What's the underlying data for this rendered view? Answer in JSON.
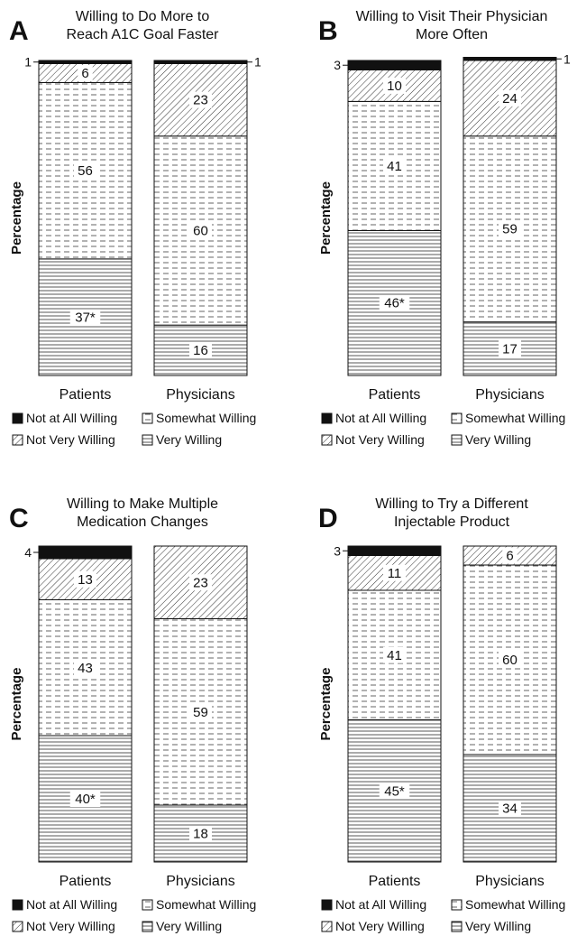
{
  "chart_data": [
    {
      "type": "bar",
      "stacked": true,
      "letter": "A",
      "title_lines": [
        "Willing to Do More to",
        "Reach A1C Goal Faster"
      ],
      "ylabel": "Percentage",
      "categories": [
        "Patients",
        "Physicians"
      ],
      "series": [
        {
          "name": "Very Willing",
          "values": [
            37,
            16
          ],
          "labels": [
            "37*",
            "16"
          ]
        },
        {
          "name": "Somewhat Willing",
          "values": [
            56,
            60
          ],
          "labels": [
            "56",
            "60"
          ]
        },
        {
          "name": "Not Very Willing",
          "values": [
            6,
            23
          ],
          "labels": [
            "6",
            "23"
          ]
        },
        {
          "name": "Not at All Willing",
          "values": [
            1,
            1
          ],
          "labels": [
            "1",
            "1"
          ]
        }
      ]
    },
    {
      "type": "bar",
      "stacked": true,
      "letter": "B",
      "title_lines": [
        "Willing to Visit Their Physician",
        "More Often"
      ],
      "ylabel": "Percentage",
      "categories": [
        "Patients",
        "Physicians"
      ],
      "series": [
        {
          "name": "Very Willing",
          "values": [
            46,
            17
          ],
          "labels": [
            "46*",
            "17"
          ]
        },
        {
          "name": "Somewhat Willing",
          "values": [
            41,
            59
          ],
          "labels": [
            "41",
            "59"
          ]
        },
        {
          "name": "Not Very Willing",
          "values": [
            10,
            24
          ],
          "labels": [
            "10",
            "24"
          ]
        },
        {
          "name": "Not at All Willing",
          "values": [
            3,
            1
          ],
          "labels": [
            "3",
            "1"
          ]
        }
      ]
    },
    {
      "type": "bar",
      "stacked": true,
      "letter": "C",
      "title_lines": [
        "Willing to Make Multiple",
        "Medication Changes"
      ],
      "ylabel": "Percentage",
      "categories": [
        "Patients",
        "Physicians"
      ],
      "series": [
        {
          "name": "Very Willing",
          "values": [
            40,
            18
          ],
          "labels": [
            "40*",
            "18"
          ]
        },
        {
          "name": "Somewhat Willing",
          "values": [
            43,
            59
          ],
          "labels": [
            "43",
            "59"
          ]
        },
        {
          "name": "Not Very Willing",
          "values": [
            13,
            23
          ],
          "labels": [
            "13",
            "23"
          ]
        },
        {
          "name": "Not at All Willing",
          "values": [
            4,
            0
          ],
          "labels": [
            "4",
            ""
          ]
        }
      ]
    },
    {
      "type": "bar",
      "stacked": true,
      "letter": "D",
      "title_lines": [
        "Willing to Try a Different",
        "Injectable Product"
      ],
      "ylabel": "Percentage",
      "categories": [
        "Patients",
        "Physicians"
      ],
      "series": [
        {
          "name": "Very Willing",
          "values": [
            45,
            34
          ],
          "labels": [
            "45*",
            "34"
          ]
        },
        {
          "name": "Somewhat Willing",
          "values": [
            41,
            60
          ],
          "labels": [
            "41",
            "60"
          ]
        },
        {
          "name": "Not Very Willing",
          "values": [
            11,
            6
          ],
          "labels": [
            "11",
            "6"
          ]
        },
        {
          "name": "Not at All Willing",
          "values": [
            3,
            0
          ],
          "labels": [
            "3",
            ""
          ]
        }
      ]
    }
  ],
  "legend": [
    {
      "name": "Not at All Willing",
      "pattern": "solid"
    },
    {
      "name": "Somewhat Willing",
      "pattern": "dash"
    },
    {
      "name": "Not Very Willing",
      "pattern": "diag"
    },
    {
      "name": "Very Willing",
      "pattern": "hlines"
    }
  ]
}
